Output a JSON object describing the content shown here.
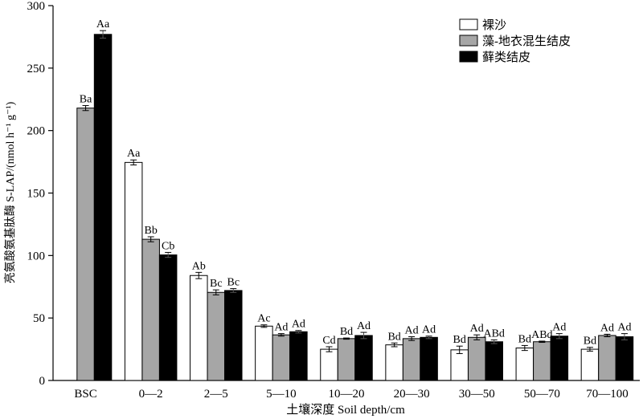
{
  "chart_data": {
    "type": "bar",
    "xlabel": "土壤深度 Soil depth/cm",
    "ylabel": "亮氨酸氨基肽酶 S-LAP/(nmol h⁻¹ g⁻¹)",
    "ylim": [
      0,
      300
    ],
    "yticks": [
      0,
      50,
      100,
      150,
      200,
      250,
      300
    ],
    "categories": [
      "BSC",
      "0—2",
      "2—5",
      "5—10",
      "10—20",
      "20—30",
      "30—50",
      "50—70",
      "70—100"
    ],
    "legend_position": "top-right",
    "series": [
      {
        "name": "裸沙",
        "color": "#ffffff",
        "values": [
          null,
          174.5,
          84,
          43.5,
          25,
          28.5,
          24.5,
          26,
          25
        ],
        "errors": [
          null,
          2,
          2.5,
          1,
          2,
          1.5,
          3,
          2,
          1.5
        ],
        "labels": [
          "",
          "Aa",
          "Ab",
          "Ac",
          "Cd",
          "Bd",
          "Bd",
          "Bd",
          "Bd"
        ]
      },
      {
        "name": "藻-地衣混生结皮",
        "color": "#a6a6a6",
        "values": [
          218,
          113,
          70.5,
          36.5,
          33.5,
          33.5,
          34.5,
          31,
          36
        ],
        "errors": [
          2,
          2,
          2,
          1,
          0.5,
          1.5,
          2,
          0.5,
          1
        ],
        "labels": [
          "Ba",
          "Bb",
          "Bc",
          "Ad",
          "Bd",
          "Ad",
          "Ad",
          "ABd",
          "Ad"
        ]
      },
      {
        "name": "藓类结皮",
        "color": "#000000",
        "values": [
          277,
          100.5,
          72,
          39,
          36,
          34.5,
          31,
          35.5,
          35
        ],
        "errors": [
          3,
          2,
          1.5,
          1,
          2.5,
          1,
          1.5,
          2,
          2.5
        ],
        "labels": [
          "Aa",
          "Cb",
          "Bc",
          "Ad",
          "Ad",
          "Ad",
          "ABd",
          "Ad",
          "Ad"
        ]
      }
    ]
  }
}
